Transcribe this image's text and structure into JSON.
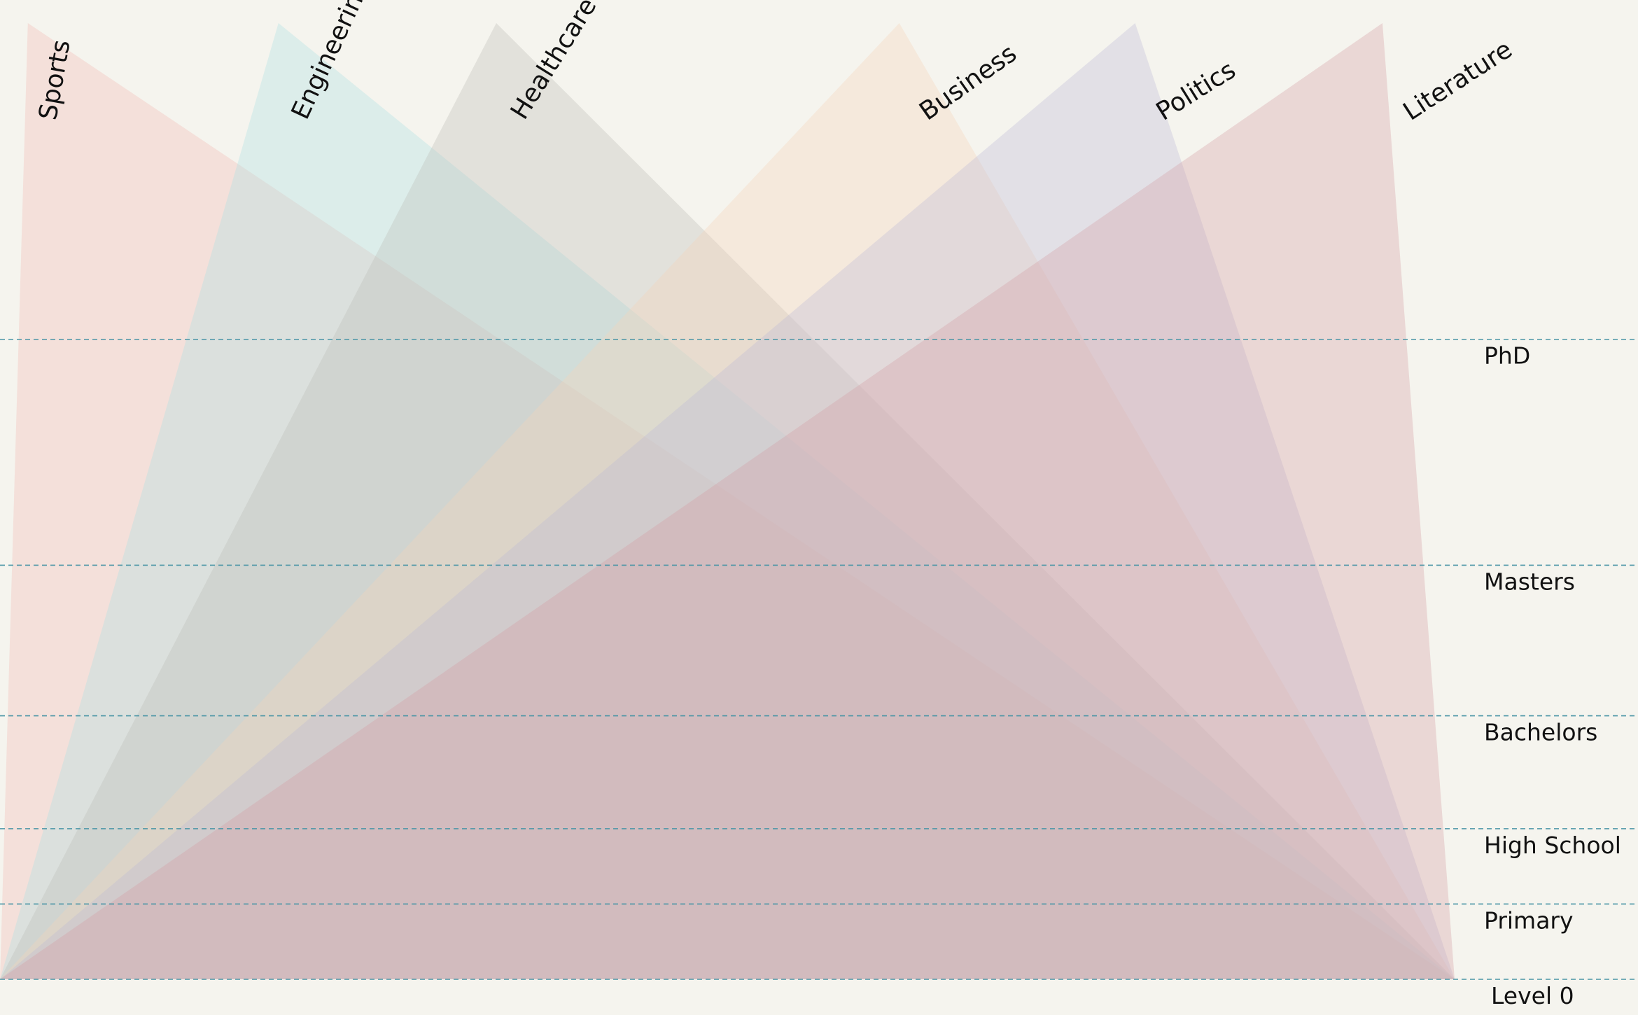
{
  "chart_data": {
    "type": "area",
    "title": "",
    "xlabel": "",
    "ylabel": "",
    "grid": true,
    "legend": "none",
    "levels": [
      "Level 0",
      "Primary",
      "High School",
      "Bachelors",
      "Masters",
      "PhD"
    ],
    "level_values": [
      0,
      1,
      2,
      3.5,
      5.5,
      8.5
    ],
    "ylim": [
      0,
      12.7
    ],
    "series": [
      {
        "name": "Sports",
        "peak_x": 0.017,
        "value": 12.7,
        "color": "#f2b8b0"
      },
      {
        "name": "Engineering",
        "peak_x": 0.17,
        "value": 12.7,
        "color": "#a8dfe2"
      },
      {
        "name": "Healthcare",
        "peak_x": 0.303,
        "value": 12.7,
        "color": "#bcbcb4"
      },
      {
        "name": "Business",
        "peak_x": 0.549,
        "value": 12.7,
        "color": "#f7d2b8"
      },
      {
        "name": "Politics",
        "peak_x": 0.693,
        "value": 12.7,
        "color": "#bab8d6"
      },
      {
        "name": "Literature",
        "peak_x": 0.844,
        "value": 12.7,
        "color": "#d49aa2"
      }
    ]
  }
}
